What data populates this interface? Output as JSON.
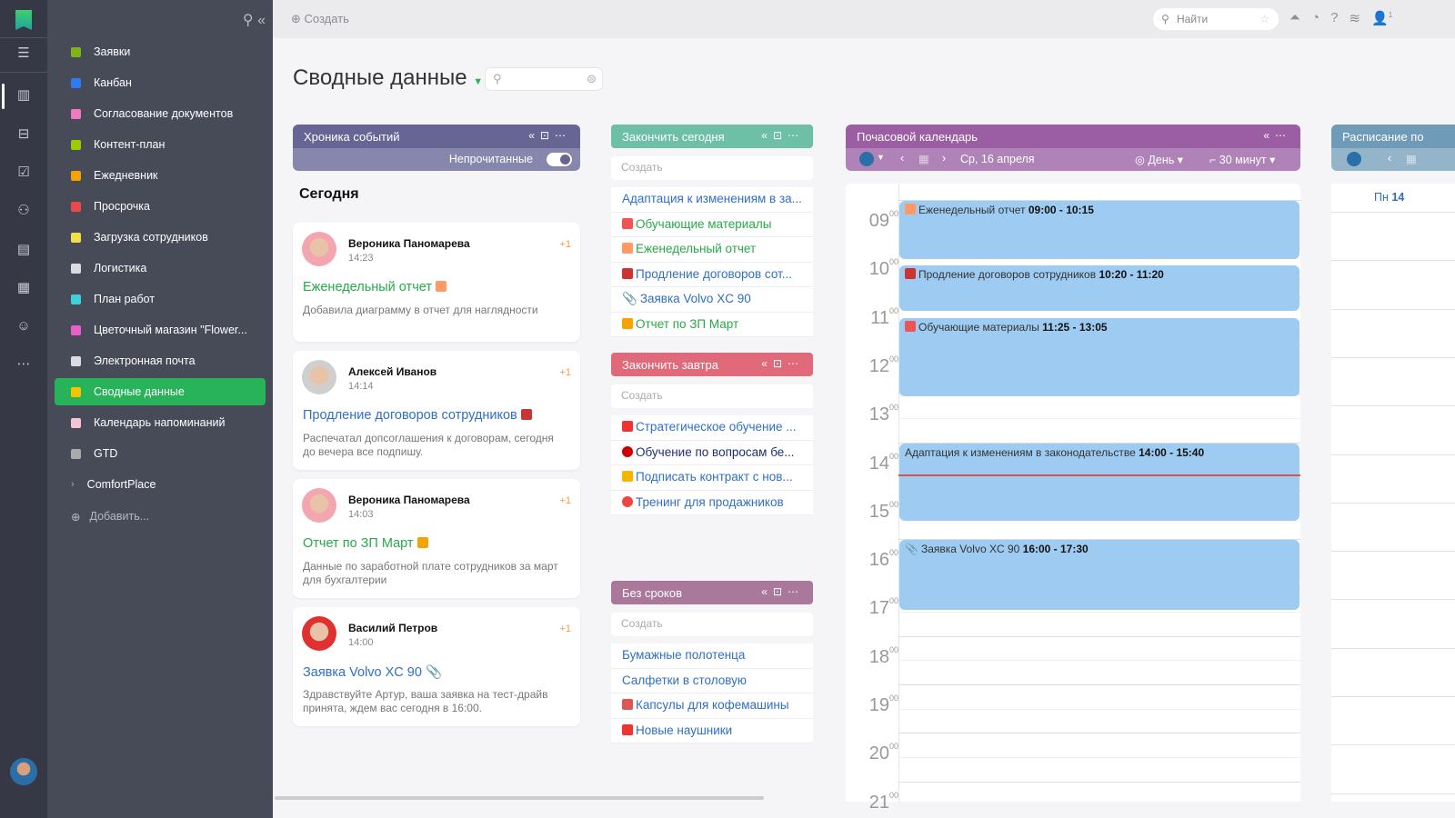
{
  "app": {
    "logo": "flag-logo",
    "user_avatar": "user-avatar"
  },
  "rail": {
    "icons": [
      "menu-icon",
      "boards-icon",
      "inbox-icon",
      "tasks-icon",
      "people-icon",
      "reports-icon",
      "documents-icon",
      "contacts-icon",
      "more-icon"
    ]
  },
  "sidebar": {
    "items": [
      {
        "label": "Заявки",
        "color": "#7cb518"
      },
      {
        "label": "Канбан",
        "color": "#2f7bf5"
      },
      {
        "label": "Согласование документов",
        "color": "#f07ac2"
      },
      {
        "label": "Контент-план",
        "color": "#9acd00"
      },
      {
        "label": "Ежедневник",
        "color": "#f5a300"
      },
      {
        "label": "Просрочка",
        "color": "#e84a4a"
      },
      {
        "label": "Загрузка сотрудников",
        "color": "#f2e04a"
      },
      {
        "label": "Логистика",
        "color": "#dcdce0"
      },
      {
        "label": "План работ",
        "color": "#3ed0d8"
      },
      {
        "label": "Цветочный магазин \"Flower...",
        "color": "#e860c8"
      },
      {
        "label": "Электронная почта",
        "color": "#dcdce0"
      },
      {
        "label": "Сводные данные",
        "color": "#f5c400",
        "active": true
      },
      {
        "label": "Календарь напоминаний",
        "color": "#f7c3d0"
      },
      {
        "label": "GTD",
        "color": "#aaaaaa"
      }
    ],
    "group": "ComfortPlace",
    "add": "Добавить..."
  },
  "topbar": {
    "create": "Создать",
    "search_placeholder": "Найти",
    "notif_count": "1"
  },
  "page": {
    "title": "Сводные данные"
  },
  "timeline": {
    "title": "Хроника событий",
    "filter": "Непрочитанные",
    "filter_on": true,
    "section": "Сегодня",
    "color": "#676593",
    "cards": [
      {
        "name": "Вероника Паномарева",
        "time": "14:23",
        "plus": "+1",
        "link": "Еженедельный отчет",
        "link_color": "green",
        "desc": "Добавила диаграмму в отчет для наглядности"
      },
      {
        "name": "Алексей Иванов",
        "time": "14:14",
        "plus": "+1",
        "link": "Продление договоров сотрудников",
        "link_color": "blue",
        "desc": "Распечатал допсоглашения к договорам, сегодня до вечера все подпишу."
      },
      {
        "name": "Вероника Паномарева",
        "time": "14:03",
        "plus": "+1",
        "link": "Отчет по ЗП Март",
        "link_color": "green",
        "desc": "Данные по заработной плате сотрудников за март для бухгалтерии"
      },
      {
        "name": "Василий Петров",
        "time": "14:00",
        "plus": "+1",
        "link": "Заявка Volvo XC 90",
        "link_color": "blue",
        "desc": "Здравствуйте Артур, ваша заявка на тест-драйв принята, ждем вас сегодня в 16:00."
      }
    ]
  },
  "lists": [
    {
      "title": "Закончить сегодня",
      "color": "#6dbfa6",
      "create": "Создать",
      "items": [
        {
          "text": "Адаптация к изменениям в за...",
          "color": "blue",
          "icon": ""
        },
        {
          "text": "Обучающие материалы",
          "color": "green",
          "icon": "abc-blocks-icon"
        },
        {
          "text": "Еженедельный отчет",
          "color": "green",
          "icon": "bar-chart-icon"
        },
        {
          "text": "Продление договоров сот...",
          "color": "blue",
          "icon": "book-icon"
        },
        {
          "text": "Заявка Volvo XC 90",
          "color": "blue",
          "icon": "paperclip-icon"
        },
        {
          "text": "Отчет по ЗП Март",
          "color": "green",
          "icon": "calculator-icon"
        }
      ]
    },
    {
      "title": "Закончить завтра",
      "color": "#e0697a",
      "create": "Создать",
      "items": [
        {
          "text": "Стратегическое обучение ...",
          "color": "blue",
          "icon": "star-flag-icon"
        },
        {
          "text": "Обучение по вопросам бе...",
          "color": "navy",
          "icon": "exclamation-icon"
        },
        {
          "text": "Подписать контракт с нов...",
          "color": "blue",
          "icon": "truck-icon"
        },
        {
          "text": "Тренинг для продажников",
          "color": "blue",
          "icon": "target-icon"
        }
      ]
    },
    {
      "title": "Без сроков",
      "color": "#a9789a",
      "create": "Создать",
      "items": [
        {
          "text": "Бумажные полотенца",
          "color": "blue",
          "icon": ""
        },
        {
          "text": "Салфетки в столовую",
          "color": "blue",
          "icon": ""
        },
        {
          "text": "Капсулы для кофемашины",
          "color": "blue",
          "icon": "coffee-icon"
        },
        {
          "text": "Новые наушники",
          "color": "blue",
          "icon": "music-note-icon"
        }
      ]
    }
  ],
  "calendar": {
    "title": "Почасовой календарь",
    "color": "#9b5ea3",
    "date": "Ср, 16 апреля",
    "view": "День",
    "step": "30 минут",
    "hours": [
      "09",
      "10",
      "11",
      "12",
      "13",
      "14",
      "15",
      "16",
      "17",
      "18",
      "19",
      "20",
      "21"
    ],
    "minutes": "00",
    "now": "14:40",
    "events": [
      {
        "title": "Еженедельный отчет",
        "time": "09:00 - 10:15",
        "start": 9.0,
        "end": 10.25,
        "icon": "bar-chart-icon"
      },
      {
        "title": "Продление договоров сотрудников",
        "time": "10:20 - 11:20",
        "start": 10.333,
        "end": 11.333,
        "icon": "book-icon"
      },
      {
        "title": "Обучающие материалы",
        "time": "11:25 - 13:05",
        "start": 11.417,
        "end": 13.083,
        "icon": "abc-blocks-icon"
      },
      {
        "title": "Адаптация к изменениям в законодательстве",
        "time": "14:00 - 15:40",
        "start": 14.0,
        "end": 15.667,
        "icon": ""
      },
      {
        "title": "Заявка Volvo XC 90",
        "time": "16:00 - 17:30",
        "start": 16.0,
        "end": 17.5,
        "icon": "paperclip-icon"
      }
    ]
  },
  "schedule": {
    "title": "Расписание по",
    "color": "#6f9bb8",
    "day": "Пн",
    "daynum": "14"
  }
}
